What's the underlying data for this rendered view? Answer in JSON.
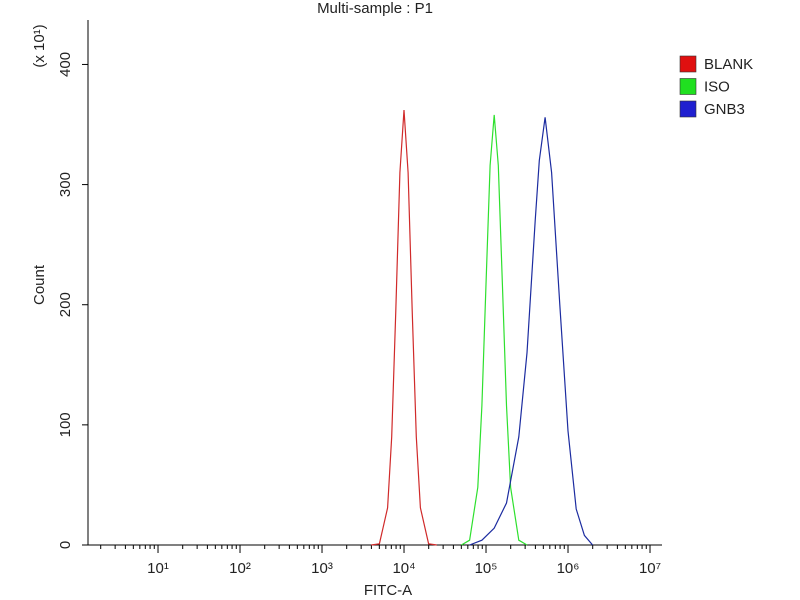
{
  "chart_data": {
    "type": "line",
    "title": "Multi-sample : P1",
    "xlabel": "FITC-A",
    "ylabel": "Count",
    "y_scale_label": "(x 10¹)",
    "xscale": "log",
    "xlim": [
      1.4,
      14000000
    ],
    "xticks": [
      {
        "value": 10,
        "label": "10¹"
      },
      {
        "value": 100,
        "label": "10²"
      },
      {
        "value": 1000,
        "label": "10³"
      },
      {
        "value": 10000,
        "label": "10⁴"
      },
      {
        "value": 100000,
        "label": "10⁵"
      },
      {
        "value": 1000000,
        "label": "10⁶"
      },
      {
        "value": 10000000,
        "label": "10⁷"
      }
    ],
    "minor_ticks": true,
    "ylim": [
      0,
      437
    ],
    "yticks": [
      0,
      100,
      200,
      300,
      400
    ],
    "legend": "right",
    "series": [
      {
        "name": "BLANK",
        "color": "#d02a2a",
        "legend_color": "#e01010",
        "x": [
          3981,
          5012,
          6310,
          7079,
          7943,
          8913,
          10000,
          11220,
          12589,
          14125,
          15849,
          19953,
          25119
        ],
        "values": [
          0,
          1,
          31,
          90,
          195,
          310,
          362,
          310,
          195,
          90,
          31,
          1,
          0
        ]
      },
      {
        "name": "ISO",
        "color": "#2ee02e",
        "legend_color": "#20e020",
        "x": [
          50119,
          63096,
          79433,
          89125,
          100000,
          112202,
          125893,
          141254,
          158489,
          177828,
          199526,
          251189,
          316228
        ],
        "values": [
          0,
          4,
          48,
          116,
          217,
          316,
          358,
          316,
          217,
          116,
          48,
          4,
          0
        ]
      },
      {
        "name": "GNB3",
        "color": "#1c2ca0",
        "legend_color": "#2020d0",
        "x": [
          63096,
          89125,
          125893,
          177828,
          251189,
          316228,
          398107,
          446684,
          524807,
          630957,
          794328,
          1000000,
          1258925,
          1584893,
          1995262
        ],
        "values": [
          0,
          4,
          14,
          35,
          90,
          160,
          270,
          320,
          356,
          310,
          200,
          95,
          30,
          8,
          0
        ]
      }
    ]
  }
}
